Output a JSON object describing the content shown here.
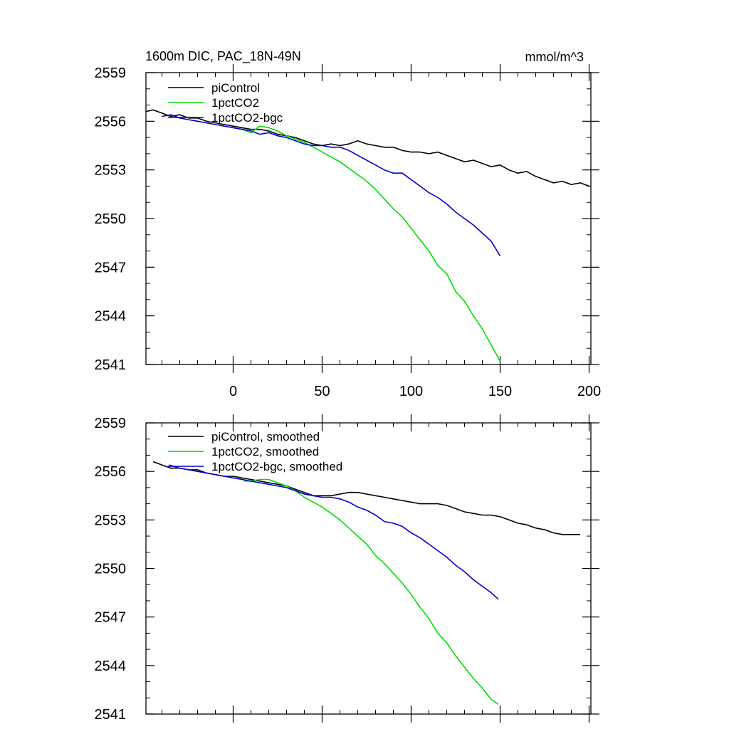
{
  "header": {
    "left_title": "1600m DIC, PAC_18N-49N",
    "right_title": "mmol/m^3"
  },
  "colors": {
    "piControl": "#000000",
    "1pctCO2": "#00dd00",
    "1pctCO2-bgc": "#0000cc"
  },
  "chart_data": [
    {
      "type": "line",
      "title": "1600m DIC, PAC_18N-49N",
      "units": "mmol/m^3",
      "xlim": [
        -49,
        201
      ],
      "ylim": [
        2541,
        2559
      ],
      "x_ticks": [
        0,
        50,
        100,
        150,
        200
      ],
      "y_ticks": [
        2541,
        2544,
        2547,
        2550,
        2553,
        2556,
        2559
      ],
      "x_tick_labels_shown": true,
      "grid": false,
      "legend_position": "top-left",
      "series": [
        {
          "name": "piControl",
          "color": "#000000",
          "x": [
            -49,
            -45,
            -40,
            -35,
            -30,
            -25,
            -20,
            -15,
            -10,
            -5,
            0,
            5,
            10,
            15,
            20,
            25,
            30,
            35,
            40,
            45,
            50,
            55,
            60,
            65,
            70,
            75,
            80,
            85,
            90,
            95,
            100,
            105,
            110,
            115,
            120,
            125,
            130,
            135,
            140,
            145,
            150,
            155,
            160,
            165,
            170,
            175,
            180,
            185,
            190,
            195,
            200
          ],
          "y": [
            2556.6,
            2556.7,
            2556.5,
            2556.3,
            2556.4,
            2556.2,
            2556.2,
            2556.0,
            2555.9,
            2555.8,
            2555.7,
            2555.6,
            2555.5,
            2555.5,
            2555.4,
            2555.2,
            2555.1,
            2555.0,
            2554.8,
            2554.6,
            2554.5,
            2554.6,
            2554.5,
            2554.6,
            2554.8,
            2554.6,
            2554.5,
            2554.4,
            2554.4,
            2554.2,
            2554.1,
            2554.1,
            2554.0,
            2554.1,
            2553.9,
            2553.7,
            2553.5,
            2553.6,
            2553.4,
            2553.2,
            2553.3,
            2553.0,
            2552.8,
            2552.9,
            2552.6,
            2552.4,
            2552.2,
            2552.3,
            2552.1,
            2552.2,
            2552.0
          ]
        },
        {
          "name": "1pctCO2",
          "color": "#00dd00",
          "x": [
            0,
            5,
            10,
            15,
            20,
            25,
            30,
            35,
            40,
            45,
            50,
            55,
            60,
            65,
            70,
            75,
            80,
            85,
            90,
            95,
            100,
            105,
            110,
            115,
            120,
            125,
            130,
            135,
            140,
            145,
            150
          ],
          "y": [
            2555.6,
            2555.5,
            2555.3,
            2555.7,
            2555.6,
            2555.4,
            2555.1,
            2554.9,
            2554.7,
            2554.4,
            2554.1,
            2553.8,
            2553.5,
            2553.1,
            2552.7,
            2552.3,
            2551.8,
            2551.2,
            2550.6,
            2550.1,
            2549.4,
            2548.7,
            2548.0,
            2547.1,
            2546.6,
            2545.5,
            2544.9,
            2544.0,
            2543.2,
            2542.2,
            2541.2
          ]
        },
        {
          "name": "1pctCO2-bgc",
          "color": "#0000cc",
          "x": [
            -40,
            -35,
            -30,
            -25,
            -20,
            -15,
            -10,
            -5,
            0,
            5,
            10,
            15,
            20,
            25,
            30,
            35,
            40,
            45,
            50,
            55,
            60,
            65,
            70,
            75,
            80,
            85,
            90,
            95,
            100,
            105,
            110,
            115,
            120,
            125,
            130,
            135,
            140,
            145,
            150
          ],
          "y": [
            2556.3,
            2556.4,
            2556.2,
            2556.1,
            2556.0,
            2555.9,
            2555.8,
            2555.7,
            2555.6,
            2555.5,
            2555.4,
            2555.2,
            2555.3,
            2555.1,
            2555.0,
            2554.8,
            2554.6,
            2554.5,
            2554.5,
            2554.4,
            2554.4,
            2554.2,
            2553.9,
            2553.6,
            2553.3,
            2553.0,
            2552.8,
            2552.8,
            2552.4,
            2552.0,
            2551.6,
            2551.3,
            2550.9,
            2550.4,
            2550.0,
            2549.6,
            2549.1,
            2548.6,
            2547.7
          ]
        }
      ]
    },
    {
      "type": "line",
      "xlim": [
        -49,
        201
      ],
      "ylim": [
        2541,
        2559
      ],
      "x_ticks": [
        0,
        50,
        100,
        150,
        200
      ],
      "y_ticks": [
        2541,
        2544,
        2547,
        2550,
        2553,
        2556,
        2559
      ],
      "x_tick_labels_shown": false,
      "grid": false,
      "legend_position": "top-left",
      "series": [
        {
          "name": "piControl, smoothed",
          "color": "#000000",
          "x": [
            -45,
            -40,
            -35,
            -30,
            -25,
            -20,
            -15,
            -10,
            -5,
            0,
            5,
            10,
            15,
            20,
            25,
            30,
            35,
            40,
            45,
            50,
            55,
            60,
            65,
            70,
            75,
            80,
            85,
            90,
            95,
            100,
            105,
            110,
            115,
            120,
            125,
            130,
            135,
            140,
            145,
            150,
            155,
            160,
            165,
            170,
            175,
            180,
            185,
            190,
            195
          ],
          "y": [
            2556.6,
            2556.4,
            2556.2,
            2556.2,
            2556.1,
            2556.1,
            2555.9,
            2555.8,
            2555.7,
            2555.7,
            2555.6,
            2555.5,
            2555.4,
            2555.3,
            2555.2,
            2555.1,
            2554.9,
            2554.7,
            2554.5,
            2554.5,
            2554.5,
            2554.6,
            2554.7,
            2554.7,
            2554.6,
            2554.5,
            2554.4,
            2554.3,
            2554.2,
            2554.1,
            2554.0,
            2554.0,
            2554.0,
            2553.9,
            2553.7,
            2553.5,
            2553.4,
            2553.3,
            2553.3,
            2553.2,
            2553.0,
            2552.8,
            2552.7,
            2552.5,
            2552.4,
            2552.2,
            2552.1,
            2552.1,
            2552.1
          ]
        },
        {
          "name": "1pctCO2, smoothed",
          "color": "#00dd00",
          "x": [
            6,
            10,
            15,
            20,
            25,
            30,
            35,
            40,
            45,
            50,
            55,
            60,
            65,
            70,
            75,
            80,
            85,
            90,
            95,
            100,
            105,
            110,
            115,
            120,
            125,
            130,
            135,
            140,
            145,
            149
          ],
          "y": [
            2555.4,
            2555.4,
            2555.5,
            2555.5,
            2555.3,
            2555.1,
            2554.8,
            2554.4,
            2554.1,
            2553.8,
            2553.4,
            2553.0,
            2552.5,
            2552.0,
            2551.5,
            2550.8,
            2550.3,
            2549.7,
            2549.1,
            2548.4,
            2547.6,
            2546.9,
            2546.0,
            2545.4,
            2544.6,
            2543.9,
            2543.2,
            2542.6,
            2541.9,
            2541.6
          ]
        },
        {
          "name": "1pctCO2-bgc, smoothed",
          "color": "#0000cc",
          "x": [
            -36,
            -30,
            -25,
            -20,
            -15,
            -10,
            -5,
            0,
            5,
            10,
            15,
            20,
            25,
            30,
            35,
            40,
            45,
            50,
            55,
            60,
            65,
            70,
            75,
            80,
            85,
            90,
            95,
            100,
            105,
            110,
            115,
            120,
            125,
            130,
            135,
            140,
            145,
            149
          ],
          "y": [
            2556.4,
            2556.2,
            2556.1,
            2556.0,
            2555.9,
            2555.8,
            2555.7,
            2555.6,
            2555.5,
            2555.4,
            2555.3,
            2555.2,
            2555.1,
            2555.0,
            2554.8,
            2554.6,
            2554.5,
            2554.4,
            2554.4,
            2554.3,
            2554.1,
            2553.8,
            2553.6,
            2553.3,
            2552.9,
            2552.8,
            2552.6,
            2552.2,
            2551.9,
            2551.5,
            2551.1,
            2550.7,
            2550.2,
            2549.8,
            2549.3,
            2548.9,
            2548.5,
            2548.1
          ]
        }
      ]
    }
  ]
}
